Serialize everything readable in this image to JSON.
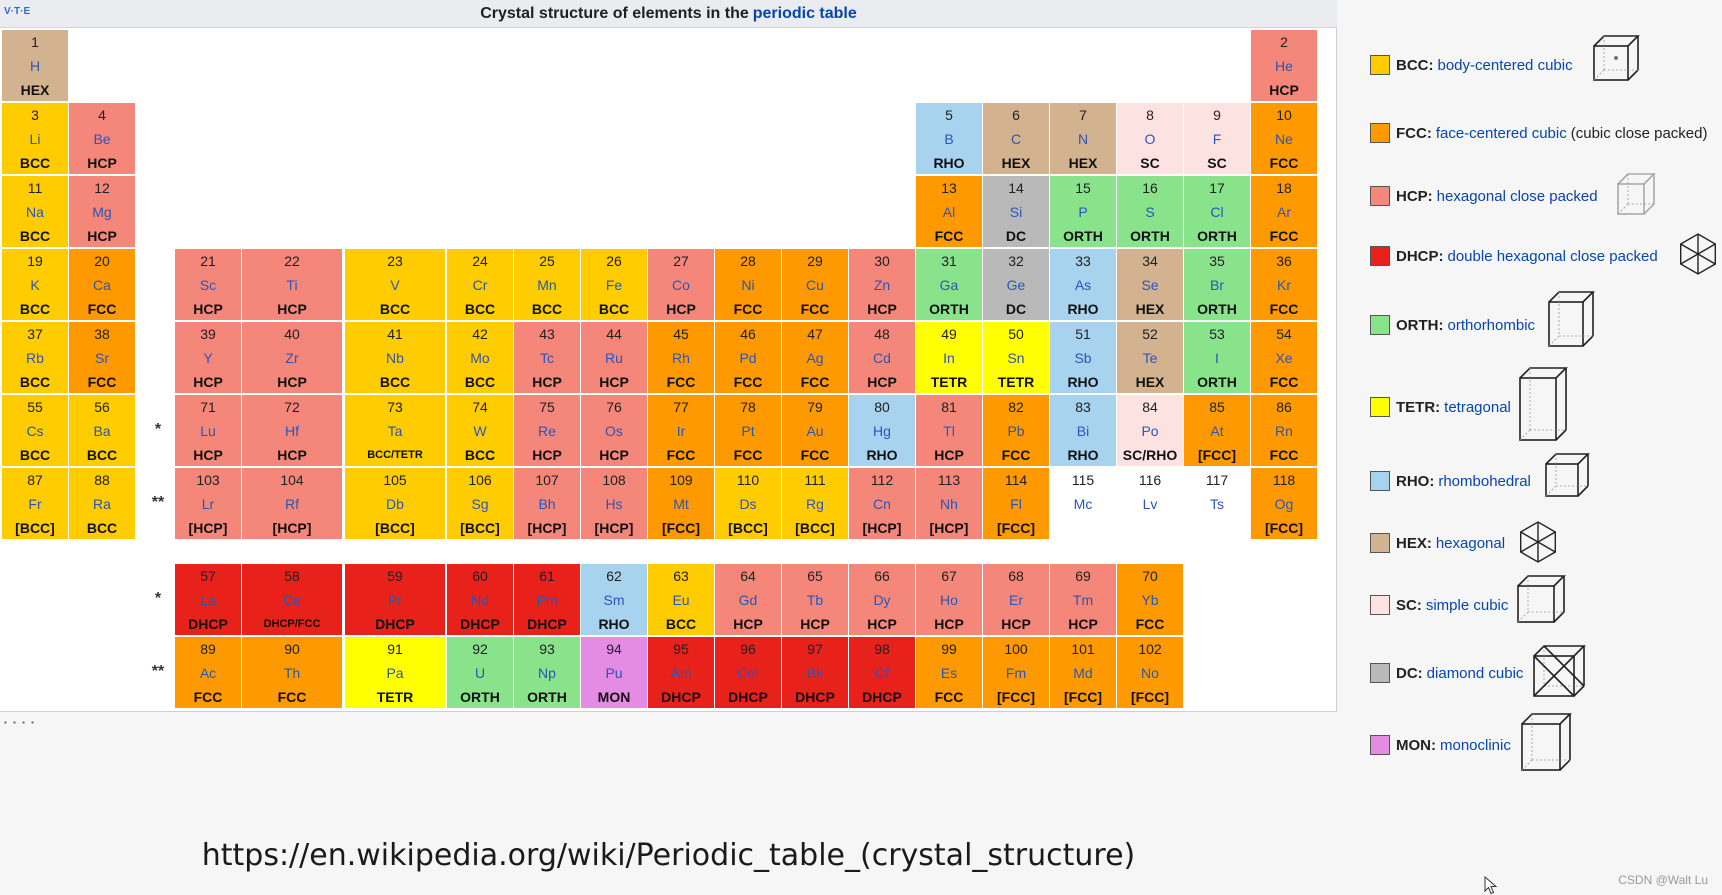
{
  "header": {
    "vte": "V·T·E",
    "title_prefix": "Crystal structure of elements in the",
    "title_link": "periodic table"
  },
  "colors": {
    "BCC": "#ffcc00",
    "FCC": "#ff9900",
    "HCP": "#f4877a",
    "DHCP": "#e8211a",
    "ORTH": "#88e38a",
    "TETR": "#ffff00",
    "RHO": "#a7d3ef",
    "HEX": "#d2b28f",
    "SC": "#fde2e2",
    "DC": "#b9b9b9",
    "MON": "#e48be4",
    "NONE": "#ffffff"
  },
  "elements": [
    {
      "n": "1",
      "s": "H",
      "t": "HEX",
      "c": "HEX",
      "p": [
        1,
        1
      ]
    },
    {
      "n": "2",
      "s": "He",
      "t": "HCP",
      "c": "HCP",
      "p": [
        1,
        18
      ]
    },
    {
      "n": "3",
      "s": "Li",
      "t": "BCC",
      "c": "BCC",
      "p": [
        2,
        1
      ]
    },
    {
      "n": "4",
      "s": "Be",
      "t": "HCP",
      "c": "HCP",
      "p": [
        2,
        2
      ]
    },
    {
      "n": "5",
      "s": "B",
      "t": "RHO",
      "c": "RHO",
      "p": [
        2,
        13
      ]
    },
    {
      "n": "6",
      "s": "C",
      "t": "HEX",
      "c": "HEX",
      "p": [
        2,
        14
      ]
    },
    {
      "n": "7",
      "s": "N",
      "t": "HEX",
      "c": "HEX",
      "p": [
        2,
        15
      ]
    },
    {
      "n": "8",
      "s": "O",
      "t": "SC",
      "c": "SC",
      "p": [
        2,
        16
      ]
    },
    {
      "n": "9",
      "s": "F",
      "t": "SC",
      "c": "SC",
      "p": [
        2,
        17
      ]
    },
    {
      "n": "10",
      "s": "Ne",
      "t": "FCC",
      "c": "FCC",
      "p": [
        2,
        18
      ]
    },
    {
      "n": "11",
      "s": "Na",
      "t": "BCC",
      "c": "BCC",
      "p": [
        3,
        1
      ]
    },
    {
      "n": "12",
      "s": "Mg",
      "t": "HCP",
      "c": "HCP",
      "p": [
        3,
        2
      ]
    },
    {
      "n": "13",
      "s": "Al",
      "t": "FCC",
      "c": "FCC",
      "p": [
        3,
        13
      ]
    },
    {
      "n": "14",
      "s": "Si",
      "t": "DC",
      "c": "DC",
      "p": [
        3,
        14
      ]
    },
    {
      "n": "15",
      "s": "P",
      "t": "ORTH",
      "c": "ORTH",
      "p": [
        3,
        15
      ]
    },
    {
      "n": "16",
      "s": "S",
      "t": "ORTH",
      "c": "ORTH",
      "p": [
        3,
        16
      ]
    },
    {
      "n": "17",
      "s": "Cl",
      "t": "ORTH",
      "c": "ORTH",
      "p": [
        3,
        17
      ]
    },
    {
      "n": "18",
      "s": "Ar",
      "t": "FCC",
      "c": "FCC",
      "p": [
        3,
        18
      ]
    },
    {
      "n": "19",
      "s": "K",
      "t": "BCC",
      "c": "BCC",
      "p": [
        4,
        1
      ]
    },
    {
      "n": "20",
      "s": "Ca",
      "t": "FCC",
      "c": "FCC",
      "p": [
        4,
        2
      ]
    },
    {
      "n": "21",
      "s": "Sc",
      "t": "HCP",
      "c": "HCP",
      "p": [
        4,
        3
      ]
    },
    {
      "n": "22",
      "s": "Ti",
      "t": "HCP",
      "c": "HCP",
      "p": [
        4,
        4
      ]
    },
    {
      "n": "23",
      "s": "V",
      "t": "BCC",
      "c": "BCC",
      "p": [
        4,
        5
      ]
    },
    {
      "n": "24",
      "s": "Cr",
      "t": "BCC",
      "c": "BCC",
      "p": [
        4,
        6
      ]
    },
    {
      "n": "25",
      "s": "Mn",
      "t": "BCC",
      "c": "BCC",
      "p": [
        4,
        7
      ]
    },
    {
      "n": "26",
      "s": "Fe",
      "t": "BCC",
      "c": "BCC",
      "p": [
        4,
        8
      ]
    },
    {
      "n": "27",
      "s": "Co",
      "t": "HCP",
      "c": "HCP",
      "p": [
        4,
        9
      ]
    },
    {
      "n": "28",
      "s": "Ni",
      "t": "FCC",
      "c": "FCC",
      "p": [
        4,
        10
      ]
    },
    {
      "n": "29",
      "s": "Cu",
      "t": "FCC",
      "c": "FCC",
      "p": [
        4,
        11
      ]
    },
    {
      "n": "30",
      "s": "Zn",
      "t": "HCP",
      "c": "HCP",
      "p": [
        4,
        12
      ]
    },
    {
      "n": "31",
      "s": "Ga",
      "t": "ORTH",
      "c": "ORTH",
      "p": [
        4,
        13
      ]
    },
    {
      "n": "32",
      "s": "Ge",
      "t": "DC",
      "c": "DC",
      "p": [
        4,
        14
      ]
    },
    {
      "n": "33",
      "s": "As",
      "t": "RHO",
      "c": "RHO",
      "p": [
        4,
        15
      ]
    },
    {
      "n": "34",
      "s": "Se",
      "t": "HEX",
      "c": "HEX",
      "p": [
        4,
        16
      ]
    },
    {
      "n": "35",
      "s": "Br",
      "t": "ORTH",
      "c": "ORTH",
      "p": [
        4,
        17
      ]
    },
    {
      "n": "36",
      "s": "Kr",
      "t": "FCC",
      "c": "FCC",
      "p": [
        4,
        18
      ]
    },
    {
      "n": "37",
      "s": "Rb",
      "t": "BCC",
      "c": "BCC",
      "p": [
        5,
        1
      ]
    },
    {
      "n": "38",
      "s": "Sr",
      "t": "FCC",
      "c": "FCC",
      "p": [
        5,
        2
      ]
    },
    {
      "n": "39",
      "s": "Y",
      "t": "HCP",
      "c": "HCP",
      "p": [
        5,
        3
      ]
    },
    {
      "n": "40",
      "s": "Zr",
      "t": "HCP",
      "c": "HCP",
      "p": [
        5,
        4
      ]
    },
    {
      "n": "41",
      "s": "Nb",
      "t": "BCC",
      "c": "BCC",
      "p": [
        5,
        5
      ]
    },
    {
      "n": "42",
      "s": "Mo",
      "t": "BCC",
      "c": "BCC",
      "p": [
        5,
        6
      ]
    },
    {
      "n": "43",
      "s": "Tc",
      "t": "HCP",
      "c": "HCP",
      "p": [
        5,
        7
      ]
    },
    {
      "n": "44",
      "s": "Ru",
      "t": "HCP",
      "c": "HCP",
      "p": [
        5,
        8
      ]
    },
    {
      "n": "45",
      "s": "Rh",
      "t": "FCC",
      "c": "FCC",
      "p": [
        5,
        9
      ]
    },
    {
      "n": "46",
      "s": "Pd",
      "t": "FCC",
      "c": "FCC",
      "p": [
        5,
        10
      ]
    },
    {
      "n": "47",
      "s": "Ag",
      "t": "FCC",
      "c": "FCC",
      "p": [
        5,
        11
      ]
    },
    {
      "n": "48",
      "s": "Cd",
      "t": "HCP",
      "c": "HCP",
      "p": [
        5,
        12
      ]
    },
    {
      "n": "49",
      "s": "In",
      "t": "TETR",
      "c": "TETR",
      "p": [
        5,
        13
      ]
    },
    {
      "n": "50",
      "s": "Sn",
      "t": "TETR",
      "c": "TETR",
      "p": [
        5,
        14
      ]
    },
    {
      "n": "51",
      "s": "Sb",
      "t": "RHO",
      "c": "RHO",
      "p": [
        5,
        15
      ]
    },
    {
      "n": "52",
      "s": "Te",
      "t": "HEX",
      "c": "HEX",
      "p": [
        5,
        16
      ]
    },
    {
      "n": "53",
      "s": "I",
      "t": "ORTH",
      "c": "ORTH",
      "p": [
        5,
        17
      ]
    },
    {
      "n": "54",
      "s": "Xe",
      "t": "FCC",
      "c": "FCC",
      "p": [
        5,
        18
      ]
    },
    {
      "n": "55",
      "s": "Cs",
      "t": "BCC",
      "c": "BCC",
      "p": [
        6,
        1
      ]
    },
    {
      "n": "56",
      "s": "Ba",
      "t": "BCC",
      "c": "BCC",
      "p": [
        6,
        2
      ]
    },
    {
      "n": "71",
      "s": "Lu",
      "t": "HCP",
      "c": "HCP",
      "p": [
        6,
        3
      ]
    },
    {
      "n": "72",
      "s": "Hf",
      "t": "HCP",
      "c": "HCP",
      "p": [
        6,
        4
      ]
    },
    {
      "n": "73",
      "s": "Ta",
      "t": "BCC/TETR",
      "c": "BCC",
      "p": [
        6,
        5
      ]
    },
    {
      "n": "74",
      "s": "W",
      "t": "BCC",
      "c": "BCC",
      "p": [
        6,
        6
      ]
    },
    {
      "n": "75",
      "s": "Re",
      "t": "HCP",
      "c": "HCP",
      "p": [
        6,
        7
      ]
    },
    {
      "n": "76",
      "s": "Os",
      "t": "HCP",
      "c": "HCP",
      "p": [
        6,
        8
      ]
    },
    {
      "n": "77",
      "s": "Ir",
      "t": "FCC",
      "c": "FCC",
      "p": [
        6,
        9
      ]
    },
    {
      "n": "78",
      "s": "Pt",
      "t": "FCC",
      "c": "FCC",
      "p": [
        6,
        10
      ]
    },
    {
      "n": "79",
      "s": "Au",
      "t": "FCC",
      "c": "FCC",
      "p": [
        6,
        11
      ]
    },
    {
      "n": "80",
      "s": "Hg",
      "t": "RHO",
      "c": "RHO",
      "p": [
        6,
        12
      ]
    },
    {
      "n": "81",
      "s": "Tl",
      "t": "HCP",
      "c": "HCP",
      "p": [
        6,
        13
      ]
    },
    {
      "n": "82",
      "s": "Pb",
      "t": "FCC",
      "c": "FCC",
      "p": [
        6,
        14
      ]
    },
    {
      "n": "83",
      "s": "Bi",
      "t": "RHO",
      "c": "RHO",
      "p": [
        6,
        15
      ]
    },
    {
      "n": "84",
      "s": "Po",
      "t": "SC/RHO",
      "c": "SC",
      "p": [
        6,
        16
      ]
    },
    {
      "n": "85",
      "s": "At",
      "t": "[FCC]",
      "c": "FCC",
      "p": [
        6,
        17
      ]
    },
    {
      "n": "86",
      "s": "Rn",
      "t": "FCC",
      "c": "FCC",
      "p": [
        6,
        18
      ]
    },
    {
      "n": "87",
      "s": "Fr",
      "t": "[BCC]",
      "c": "BCC",
      "p": [
        7,
        1
      ]
    },
    {
      "n": "88",
      "s": "Ra",
      "t": "BCC",
      "c": "BCC",
      "p": [
        7,
        2
      ]
    },
    {
      "n": "103",
      "s": "Lr",
      "t": "[HCP]",
      "c": "HCP",
      "p": [
        7,
        3
      ]
    },
    {
      "n": "104",
      "s": "Rf",
      "t": "[HCP]",
      "c": "HCP",
      "p": [
        7,
        4
      ]
    },
    {
      "n": "105",
      "s": "Db",
      "t": "[BCC]",
      "c": "BCC",
      "p": [
        7,
        5
      ]
    },
    {
      "n": "106",
      "s": "Sg",
      "t": "[BCC]",
      "c": "BCC",
      "p": [
        7,
        6
      ]
    },
    {
      "n": "107",
      "s": "Bh",
      "t": "[HCP]",
      "c": "HCP",
      "p": [
        7,
        7
      ]
    },
    {
      "n": "108",
      "s": "Hs",
      "t": "[HCP]",
      "c": "HCP",
      "p": [
        7,
        8
      ]
    },
    {
      "n": "109",
      "s": "Mt",
      "t": "[FCC]",
      "c": "FCC",
      "p": [
        7,
        9
      ]
    },
    {
      "n": "110",
      "s": "Ds",
      "t": "[BCC]",
      "c": "BCC",
      "p": [
        7,
        10
      ]
    },
    {
      "n": "111",
      "s": "Rg",
      "t": "[BCC]",
      "c": "BCC",
      "p": [
        7,
        11
      ]
    },
    {
      "n": "112",
      "s": "Cn",
      "t": "[HCP]",
      "c": "HCP",
      "p": [
        7,
        12
      ]
    },
    {
      "n": "113",
      "s": "Nh",
      "t": "[HCP]",
      "c": "HCP",
      "p": [
        7,
        13
      ]
    },
    {
      "n": "114",
      "s": "Fl",
      "t": "[FCC]",
      "c": "FCC",
      "p": [
        7,
        14
      ]
    },
    {
      "n": "115",
      "s": "Mc",
      "t": "",
      "c": "NONE",
      "p": [
        7,
        15
      ]
    },
    {
      "n": "116",
      "s": "Lv",
      "t": "",
      "c": "NONE",
      "p": [
        7,
        16
      ]
    },
    {
      "n": "117",
      "s": "Ts",
      "t": "",
      "c": "NONE",
      "p": [
        7,
        17
      ]
    },
    {
      "n": "118",
      "s": "Og",
      "t": "[FCC]",
      "c": "FCC",
      "p": [
        7,
        18
      ]
    },
    {
      "n": "57",
      "s": "La",
      "t": "DHCP",
      "c": "DHCP",
      "p": [
        8,
        3
      ]
    },
    {
      "n": "58",
      "s": "Ce",
      "t": "DHCP/FCC",
      "c": "DHCP",
      "p": [
        8,
        4
      ]
    },
    {
      "n": "59",
      "s": "Pr",
      "t": "DHCP",
      "c": "DHCP",
      "p": [
        8,
        5
      ]
    },
    {
      "n": "60",
      "s": "Nd",
      "t": "DHCP",
      "c": "DHCP",
      "p": [
        8,
        6
      ]
    },
    {
      "n": "61",
      "s": "Pm",
      "t": "DHCP",
      "c": "DHCP",
      "p": [
        8,
        7
      ]
    },
    {
      "n": "62",
      "s": "Sm",
      "t": "RHO",
      "c": "RHO",
      "p": [
        8,
        8
      ]
    },
    {
      "n": "63",
      "s": "Eu",
      "t": "BCC",
      "c": "BCC",
      "p": [
        8,
        9
      ]
    },
    {
      "n": "64",
      "s": "Gd",
      "t": "HCP",
      "c": "HCP",
      "p": [
        8,
        10
      ]
    },
    {
      "n": "65",
      "s": "Tb",
      "t": "HCP",
      "c": "HCP",
      "p": [
        8,
        11
      ]
    },
    {
      "n": "66",
      "s": "Dy",
      "t": "HCP",
      "c": "HCP",
      "p": [
        8,
        12
      ]
    },
    {
      "n": "67",
      "s": "Ho",
      "t": "HCP",
      "c": "HCP",
      "p": [
        8,
        13
      ]
    },
    {
      "n": "68",
      "s": "Er",
      "t": "HCP",
      "c": "HCP",
      "p": [
        8,
        14
      ]
    },
    {
      "n": "69",
      "s": "Tm",
      "t": "HCP",
      "c": "HCP",
      "p": [
        8,
        15
      ]
    },
    {
      "n": "70",
      "s": "Yb",
      "t": "FCC",
      "c": "FCC",
      "p": [
        8,
        16
      ]
    },
    {
      "n": "89",
      "s": "Ac",
      "t": "FCC",
      "c": "FCC",
      "p": [
        9,
        3
      ]
    },
    {
      "n": "90",
      "s": "Th",
      "t": "FCC",
      "c": "FCC",
      "p": [
        9,
        4
      ]
    },
    {
      "n": "91",
      "s": "Pa",
      "t": "TETR",
      "c": "TETR",
      "p": [
        9,
        5
      ]
    },
    {
      "n": "92",
      "s": "U",
      "t": "ORTH",
      "c": "ORTH",
      "p": [
        9,
        6
      ]
    },
    {
      "n": "93",
      "s": "Np",
      "t": "ORTH",
      "c": "ORTH",
      "p": [
        9,
        7
      ]
    },
    {
      "n": "94",
      "s": "Pu",
      "t": "MON",
      "c": "MON",
      "p": [
        9,
        8
      ]
    },
    {
      "n": "95",
      "s": "Am",
      "t": "DHCP",
      "c": "DHCP",
      "p": [
        9,
        9
      ]
    },
    {
      "n": "96",
      "s": "Cm",
      "t": "DHCP",
      "c": "DHCP",
      "p": [
        9,
        10
      ]
    },
    {
      "n": "97",
      "s": "Bk",
      "t": "DHCP",
      "c": "DHCP",
      "p": [
        9,
        11
      ]
    },
    {
      "n": "98",
      "s": "Cf",
      "t": "DHCP",
      "c": "DHCP",
      "p": [
        9,
        12
      ]
    },
    {
      "n": "99",
      "s": "Es",
      "t": "FCC",
      "c": "FCC",
      "p": [
        9,
        13
      ]
    },
    {
      "n": "100",
      "s": "Fm",
      "t": "[FCC]",
      "c": "FCC",
      "p": [
        9,
        14
      ]
    },
    {
      "n": "101",
      "s": "Md",
      "t": "[FCC]",
      "c": "FCC",
      "p": [
        9,
        15
      ]
    },
    {
      "n": "102",
      "s": "No",
      "t": "[FCC]",
      "c": "FCC",
      "p": [
        9,
        16
      ]
    }
  ],
  "markers": [
    {
      "label": "*",
      "row": 6
    },
    {
      "label": "**",
      "row": 7
    },
    {
      "label": "*",
      "row": 8
    },
    {
      "label": "**",
      "row": 9
    }
  ],
  "legend": [
    {
      "code": "BCC",
      "desc": "body-centered cubic",
      "extra": "",
      "icon": "bcc-cube-icon"
    },
    {
      "code": "FCC",
      "desc": "face-centered cubic",
      "extra": "(cubic close packed)",
      "icon": ""
    },
    {
      "code": "HCP",
      "desc": "hexagonal close packed",
      "extra": "",
      "icon": "hcp-prism-icon"
    },
    {
      "code": "DHCP",
      "desc": "double hexagonal close packed",
      "extra": "",
      "icon": "dhcp-prism-icon"
    },
    {
      "code": "ORTH",
      "desc": "orthorhombic",
      "extra": "",
      "icon": "orthorhombic-cell-icon"
    },
    {
      "code": "TETR",
      "desc": "tetragonal",
      "extra": "",
      "icon": "tetragonal-cell-icon"
    },
    {
      "code": "RHO",
      "desc": "rhombohedral",
      "extra": "",
      "icon": "rhombohedral-cell-icon"
    },
    {
      "code": "HEX",
      "desc": "hexagonal",
      "extra": "",
      "icon": "hexagonal-prism-icon"
    },
    {
      "code": "SC",
      "desc": "simple cubic",
      "extra": "",
      "icon": "simple-cubic-cell-icon"
    },
    {
      "code": "DC",
      "desc": "diamond cubic",
      "extra": "",
      "icon": "diamond-cubic-cell-icon"
    },
    {
      "code": "MON",
      "desc": "monoclinic",
      "extra": "",
      "icon": "monoclinic-cell-icon"
    }
  ],
  "footer": {
    "url": "https://en.wikipedia.org/wiki/Periodic_table_(crystal_structure)",
    "watermark": "CSDN @Walt Lu",
    "stray_mark": "▪ ▪ ▪ ▪"
  }
}
